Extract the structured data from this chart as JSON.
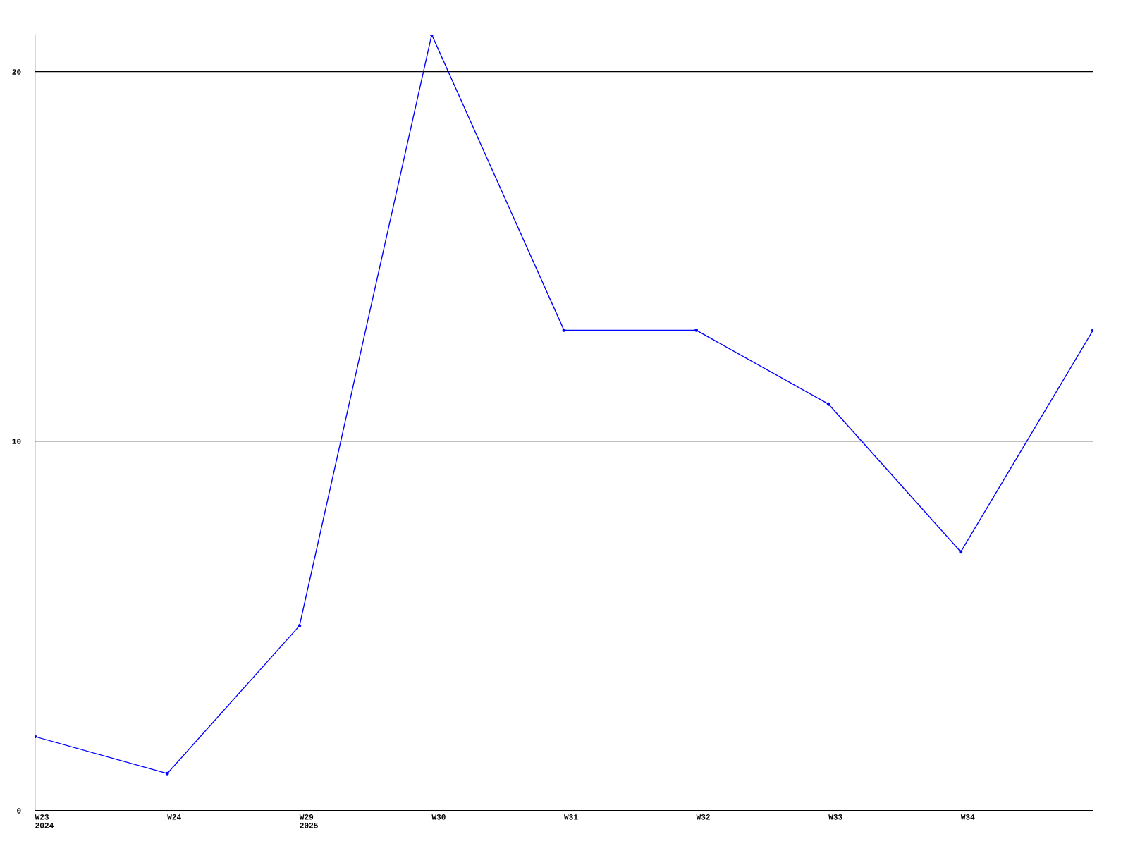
{
  "chart_data": {
    "type": "line",
    "categories": [
      "W23\n2024",
      "W24",
      "W29\n2025",
      "W30",
      "W31",
      "W32",
      "W33",
      "W34",
      null
    ],
    "series": [
      {
        "color": "#0000ff",
        "values": [
          2,
          1,
          5,
          21,
          13,
          13,
          11,
          7,
          13
        ]
      }
    ],
    "ylim": [
      0,
      21
    ],
    "yticks": [
      0,
      10,
      20
    ],
    "grid": "y",
    "marker": "circle",
    "line_style": "solid",
    "legend": false
  }
}
